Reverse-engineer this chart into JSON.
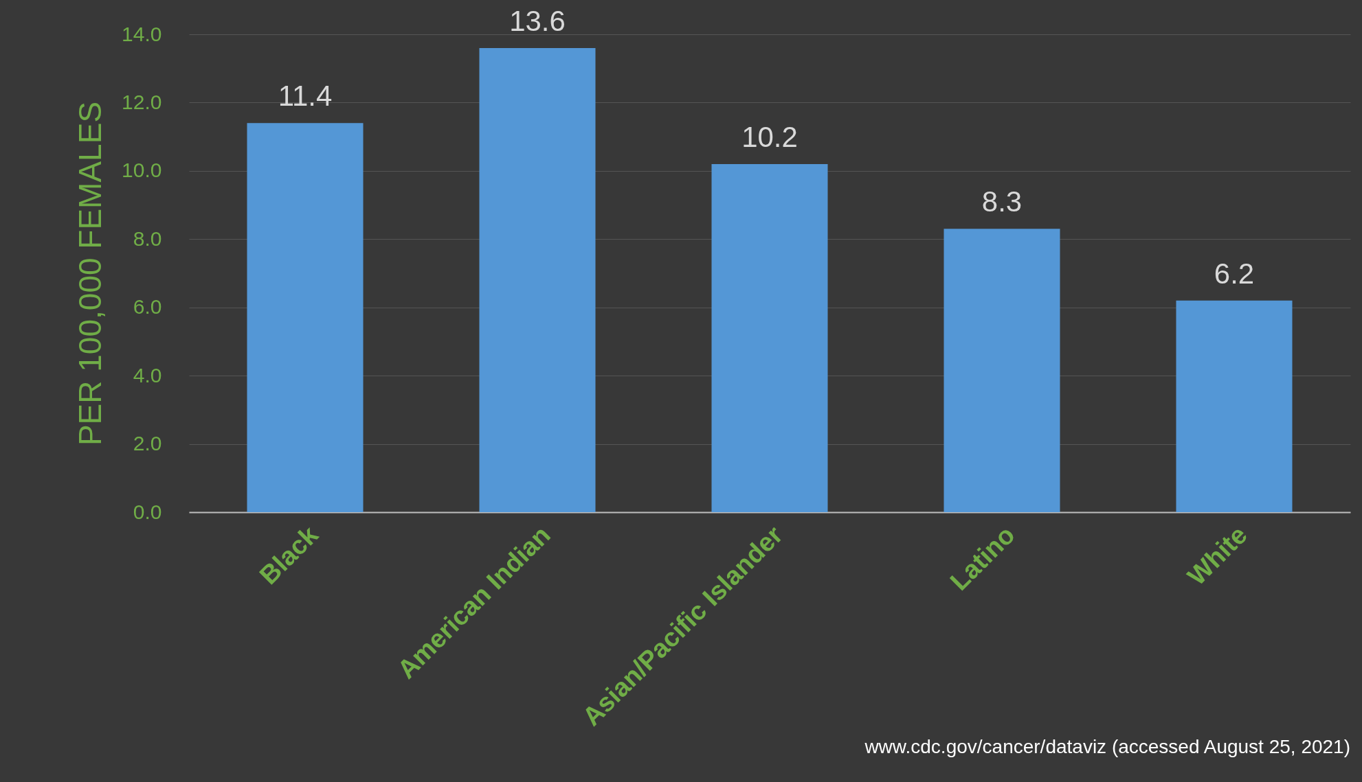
{
  "chart_data": {
    "type": "bar",
    "ylabel": "PER 100,000 FEMALES",
    "categories": [
      "Black",
      "American Indian",
      "Asian/Pacific Islander",
      "Latino",
      "White"
    ],
    "values": [
      11.4,
      13.6,
      10.2,
      8.3,
      6.2
    ],
    "color": "#5497d6",
    "ylim": [
      0,
      14
    ],
    "yticks": [
      {
        "value": 0,
        "label": "0.0"
      },
      {
        "value": 2,
        "label": "2.0"
      },
      {
        "value": 4,
        "label": "4.0"
      },
      {
        "value": 6,
        "label": "6.0"
      },
      {
        "value": 8,
        "label": "8.0"
      },
      {
        "value": 10,
        "label": "10.0"
      },
      {
        "value": 12,
        "label": "12.0"
      },
      {
        "value": 14,
        "label": "14.0"
      }
    ],
    "grid": "y",
    "data_labels": true,
    "annotations": [
      "www.cdc.gov/cancer/dataviz (accessed August 25, 2021)"
    ]
  }
}
